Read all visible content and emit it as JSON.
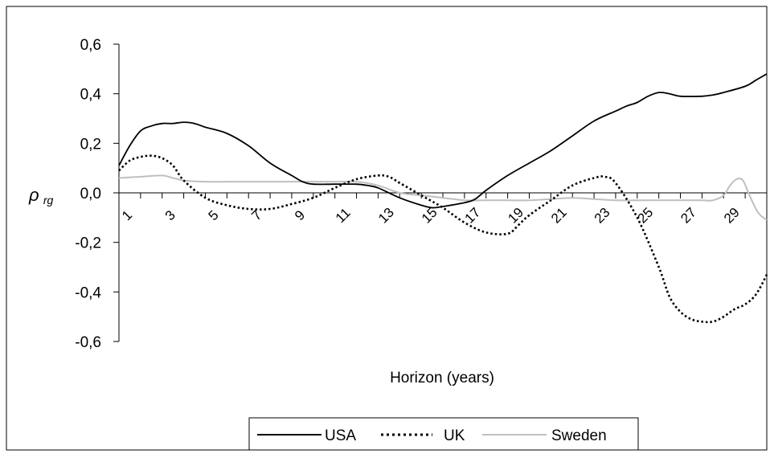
{
  "chart_data": {
    "type": "line",
    "xlabel": "Horizon (years)",
    "ylabel": "ρ rg",
    "ylabel_main": "ρ",
    "ylabel_sub": "rg",
    "xlim": [
      1,
      30
    ],
    "ylim": [
      -0.6,
      0.6
    ],
    "x_ticks": [
      "1",
      "3",
      "5",
      "7",
      "9",
      "11",
      "13",
      "15",
      "17",
      "19",
      "21",
      "23",
      "25",
      "27",
      "29"
    ],
    "y_ticks": [
      {
        "value": 0.6,
        "label": "0,6"
      },
      {
        "value": 0.4,
        "label": "0,4"
      },
      {
        "value": 0.2,
        "label": "0,2"
      },
      {
        "value": 0.0,
        "label": "0,0"
      },
      {
        "value": -0.2,
        "label": "-0,2"
      },
      {
        "value": -0.4,
        "label": "-0,4"
      },
      {
        "value": -0.6,
        "label": "-0,6"
      }
    ],
    "legend_position": "bottom",
    "grid": false,
    "series": [
      {
        "name": "USA",
        "color": "#000000",
        "style": "solid",
        "points": [
          [
            1,
            0.11
          ],
          [
            1.5,
            0.19
          ],
          [
            2,
            0.25
          ],
          [
            2.5,
            0.27
          ],
          [
            3,
            0.28
          ],
          [
            3.5,
            0.28
          ],
          [
            4,
            0.285
          ],
          [
            4.5,
            0.28
          ],
          [
            5,
            0.265
          ],
          [
            6,
            0.24
          ],
          [
            7,
            0.19
          ],
          [
            8,
            0.12
          ],
          [
            9,
            0.07
          ],
          [
            9.5,
            0.045
          ],
          [
            10,
            0.035
          ],
          [
            11,
            0.035
          ],
          [
            12,
            0.035
          ],
          [
            12.5,
            0.03
          ],
          [
            13,
            0.02
          ],
          [
            14,
            -0.02
          ],
          [
            15,
            -0.05
          ],
          [
            15.5,
            -0.06
          ],
          [
            16,
            -0.055
          ],
          [
            17,
            -0.04
          ],
          [
            17.5,
            -0.025
          ],
          [
            18,
            0.01
          ],
          [
            19,
            0.07
          ],
          [
            20,
            0.12
          ],
          [
            21,
            0.17
          ],
          [
            22,
            0.23
          ],
          [
            23,
            0.29
          ],
          [
            24,
            0.33
          ],
          [
            24.5,
            0.35
          ],
          [
            25,
            0.365
          ],
          [
            25.5,
            0.39
          ],
          [
            26,
            0.405
          ],
          [
            26.5,
            0.4
          ],
          [
            27,
            0.39
          ],
          [
            28,
            0.39
          ],
          [
            28.5,
            0.395
          ],
          [
            29,
            0.405
          ],
          [
            30,
            0.43
          ],
          [
            30.5,
            0.455
          ],
          [
            31,
            0.48
          ]
        ]
      },
      {
        "name": "UK",
        "color": "#000000",
        "style": "dotted",
        "points": [
          [
            1,
            0.09
          ],
          [
            1.5,
            0.13
          ],
          [
            2,
            0.145
          ],
          [
            2.5,
            0.15
          ],
          [
            3,
            0.14
          ],
          [
            3.5,
            0.11
          ],
          [
            4,
            0.05
          ],
          [
            5,
            -0.02
          ],
          [
            6,
            -0.05
          ],
          [
            7,
            -0.065
          ],
          [
            8,
            -0.065
          ],
          [
            9,
            -0.045
          ],
          [
            10,
            -0.02
          ],
          [
            11,
            0.02
          ],
          [
            12,
            0.055
          ],
          [
            13,
            0.07
          ],
          [
            13.5,
            0.065
          ],
          [
            14,
            0.04
          ],
          [
            15,
            -0.01
          ],
          [
            16,
            -0.06
          ],
          [
            17,
            -0.12
          ],
          [
            18,
            -0.16
          ],
          [
            19,
            -0.165
          ],
          [
            19.5,
            -0.13
          ],
          [
            20,
            -0.09
          ],
          [
            21,
            -0.03
          ],
          [
            22,
            0.03
          ],
          [
            23,
            0.06
          ],
          [
            23.5,
            0.065
          ],
          [
            24,
            0.04
          ],
          [
            25,
            -0.1
          ],
          [
            26,
            -0.3
          ],
          [
            26.5,
            -0.42
          ],
          [
            27,
            -0.48
          ],
          [
            27.5,
            -0.51
          ],
          [
            28,
            -0.52
          ],
          [
            28.5,
            -0.52
          ],
          [
            29,
            -0.5
          ],
          [
            29.5,
            -0.47
          ],
          [
            30,
            -0.45
          ],
          [
            30.5,
            -0.41
          ],
          [
            31,
            -0.33
          ]
        ]
      },
      {
        "name": "Sweden",
        "color": "#bfbfbf",
        "style": "solid",
        "points": [
          [
            1,
            0.06
          ],
          [
            2,
            0.065
          ],
          [
            3,
            0.07
          ],
          [
            3.5,
            0.06
          ],
          [
            4,
            0.05
          ],
          [
            5,
            0.045
          ],
          [
            7,
            0.045
          ],
          [
            9,
            0.045
          ],
          [
            10,
            0.045
          ],
          [
            11,
            0.045
          ],
          [
            12,
            0.045
          ],
          [
            13,
            0.03
          ],
          [
            14,
            0.0
          ],
          [
            15,
            -0.01
          ],
          [
            16,
            -0.02
          ],
          [
            17,
            -0.03
          ],
          [
            18,
            -0.03
          ],
          [
            19,
            -0.03
          ],
          [
            20,
            -0.03
          ],
          [
            21,
            -0.025
          ],
          [
            22,
            -0.02
          ],
          [
            23,
            -0.025
          ],
          [
            24,
            -0.03
          ],
          [
            25,
            -0.03
          ],
          [
            26,
            -0.03
          ],
          [
            27,
            -0.03
          ],
          [
            28,
            -0.03
          ],
          [
            28.5,
            -0.03
          ],
          [
            29,
            -0.01
          ],
          [
            29.3,
            0.03
          ],
          [
            29.6,
            0.055
          ],
          [
            29.9,
            0.05
          ],
          [
            30.2,
            -0.01
          ],
          [
            30.6,
            -0.08
          ],
          [
            31,
            -0.11
          ]
        ]
      }
    ]
  }
}
